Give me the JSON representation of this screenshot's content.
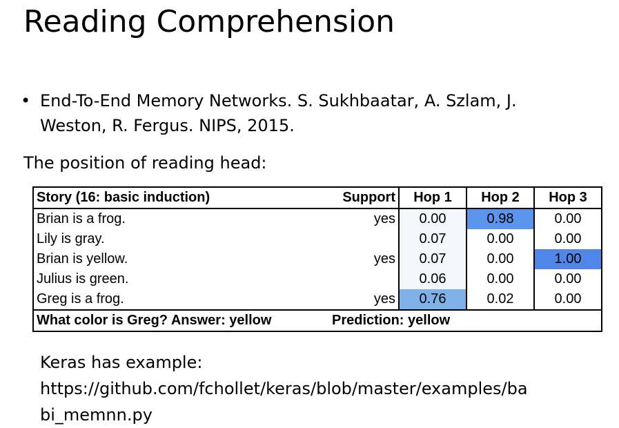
{
  "title": "Reading Comprehension",
  "bullet": "End-To-End Memory Networks. S. Sukhbaatar, A. Szlam, J. Weston, R. Fergus. NIPS, 2015.",
  "intro": "The position of reading head:",
  "table": {
    "header": [
      "Story (16: basic induction)",
      "Support",
      "Hop 1",
      "Hop 2",
      "Hop 3"
    ],
    "rows": [
      {
        "story": "Brian is a frog.",
        "support": "yes",
        "hops": [
          "0.00",
          "0.98",
          "0.00"
        ]
      },
      {
        "story": "Lily is gray.",
        "hops": [
          "0.07",
          "0.00",
          "0.00"
        ]
      },
      {
        "story": "Brian is yellow.",
        "support": "yes",
        "hops": [
          "0.07",
          "0.00",
          "1.00"
        ]
      },
      {
        "story": "Julius is green.",
        "hops": [
          "0.06",
          "0.00",
          "0.00"
        ]
      },
      {
        "story": "Greg is a frog.",
        "support": "yes",
        "hops": [
          "0.76",
          "0.02",
          "0.00"
        ]
      }
    ],
    "footer": [
      "What color is Greg?  Answer: yellow",
      "Prediction: yellow"
    ]
  },
  "note": [
    "Keras has example:",
    "https://github.com/fchollet/keras/blob/master/examples/ba",
    "bi_memnn.py"
  ]
}
